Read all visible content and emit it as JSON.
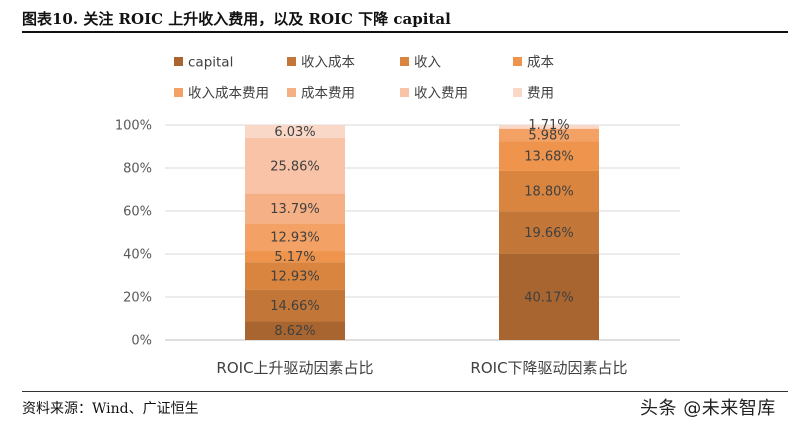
{
  "title": "图表10.  关注 ROIC 上升收入费用，以及 ROIC 下降 capital",
  "source": "资料来源：Wind、广证恒生",
  "watermark": "头条 @未来智库",
  "chart_data": {
    "type": "bar",
    "stacked": true,
    "percent_axis": true,
    "categories": [
      "ROIC上升驱动因素占比",
      "ROIC下降驱动因素占比"
    ],
    "ylim": [
      0,
      100
    ],
    "yticks": [
      "0%",
      "20%",
      "40%",
      "60%",
      "80%",
      "100%"
    ],
    "grid": true,
    "legend_position": "top",
    "series": [
      {
        "name": "capital",
        "color": "#A9652F",
        "values": [
          8.62,
          40.17
        ],
        "labels": [
          "8.62%",
          "40.17%"
        ]
      },
      {
        "name": "收入成本",
        "color": "#C27738",
        "values": [
          14.66,
          19.66
        ],
        "labels": [
          "14.66%",
          "19.66%"
        ]
      },
      {
        "name": "收入",
        "color": "#D9853F",
        "values": [
          12.93,
          18.8
        ],
        "labels": [
          "12.93%",
          "18.80%"
        ]
      },
      {
        "name": "成本",
        "color": "#EF944C",
        "values": [
          5.17,
          13.68
        ],
        "labels": [
          "5.17%",
          "13.68%"
        ]
      },
      {
        "name": "收入成本费用",
        "color": "#F4A165",
        "values": [
          12.93,
          5.98
        ],
        "labels": [
          "12.93%",
          "5.98%"
        ]
      },
      {
        "name": "成本费用",
        "color": "#F6B086",
        "values": [
          13.79,
          0
        ],
        "labels": [
          "13.79%",
          ""
        ]
      },
      {
        "name": "收入费用",
        "color": "#F8C3A6",
        "values": [
          25.86,
          0
        ],
        "labels": [
          "25.86%",
          ""
        ]
      },
      {
        "name": "费用",
        "color": "#FAD8C8",
        "values": [
          6.03,
          1.71
        ],
        "labels": [
          "6.03%",
          "1.71%"
        ]
      }
    ]
  }
}
